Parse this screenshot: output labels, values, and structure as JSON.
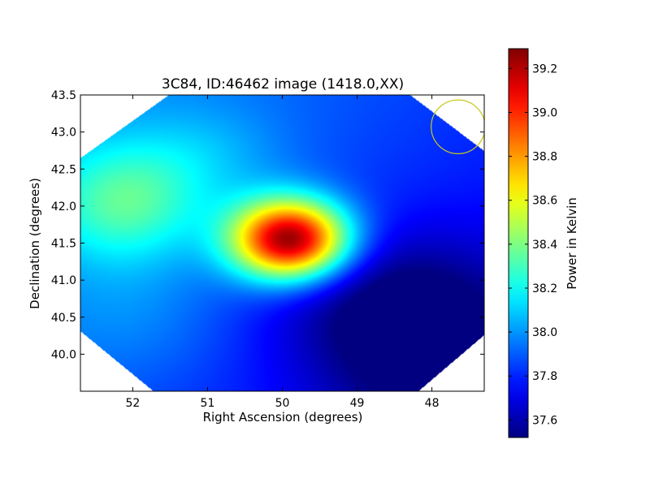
{
  "chart_data": {
    "type": "heatmap",
    "title": "3C84, ID:46462 image (1418.0,XX)",
    "xlabel": "Right Ascension (degrees)",
    "ylabel": "Declination (degrees)",
    "xlim": [
      52.7,
      47.3
    ],
    "ylim": [
      39.5,
      43.5
    ],
    "x_ticks": [
      {
        "value": 52,
        "label": "52"
      },
      {
        "value": 51,
        "label": "51"
      },
      {
        "value": 50,
        "label": "50"
      },
      {
        "value": 49,
        "label": "49"
      },
      {
        "value": 48,
        "label": "48"
      }
    ],
    "y_ticks": [
      {
        "value": 40.0,
        "label": "40.0"
      },
      {
        "value": 40.5,
        "label": "40.5"
      },
      {
        "value": 41.0,
        "label": "41.0"
      },
      {
        "value": 41.5,
        "label": "41.5"
      },
      {
        "value": 42.0,
        "label": "42.0"
      },
      {
        "value": 42.5,
        "label": "42.5"
      },
      {
        "value": 43.0,
        "label": "43.0"
      },
      {
        "value": 43.5,
        "label": "43.5"
      }
    ],
    "colormap": "jet",
    "colorbar": {
      "label": "Power in Kelvin",
      "range": [
        37.52,
        39.29
      ],
      "ticks": [
        {
          "value": 37.6,
          "label": "37.6"
        },
        {
          "value": 37.8,
          "label": "37.8"
        },
        {
          "value": 38.0,
          "label": "38.0"
        },
        {
          "value": 38.2,
          "label": "38.2"
        },
        {
          "value": 38.4,
          "label": "38.4"
        },
        {
          "value": 38.6,
          "label": "38.6"
        },
        {
          "value": 38.8,
          "label": "38.8"
        },
        {
          "value": 39.0,
          "label": "39.0"
        },
        {
          "value": 39.2,
          "label": "39.2"
        }
      ]
    },
    "background_level": 37.85,
    "features": [
      {
        "ra": 49.9,
        "dec": 41.55,
        "value": 39.29
      },
      {
        "ra": 52.1,
        "dec": 42.05,
        "value": 38.25
      },
      {
        "ra": 51.0,
        "dec": 42.7,
        "value": 37.98
      },
      {
        "ra": 48.2,
        "dec": 40.1,
        "value": 37.55
      },
      {
        "ra": 48.8,
        "dec": 40.8,
        "value": 37.7
      },
      {
        "ra": 52.0,
        "dec": 40.6,
        "value": 37.95
      }
    ],
    "beam_marker": {
      "ra": 47.65,
      "dec": 43.07,
      "radius_deg": 0.36,
      "color": "#c8c81e"
    },
    "colors": {
      "axes": "#000000",
      "background": "#ffffff",
      "nodata": "#ffffff"
    }
  }
}
